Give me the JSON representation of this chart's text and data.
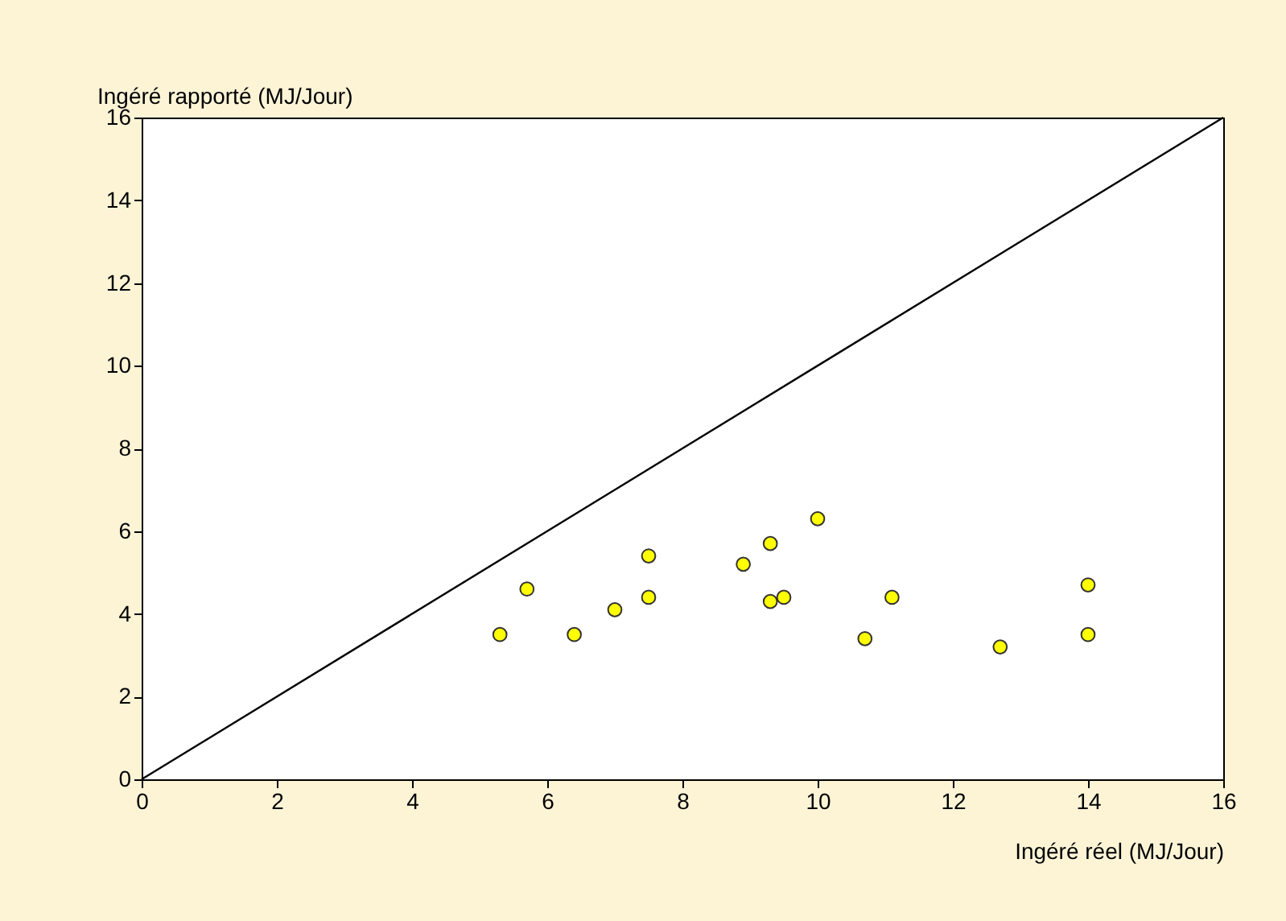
{
  "chart_data": {
    "type": "scatter",
    "xlabel": "Ingéré réel (MJ/Jour)",
    "ylabel": "Ingéré rapporté (MJ/Jour)",
    "xlim": [
      0,
      16
    ],
    "ylim": [
      0,
      16
    ],
    "xticks": [
      0,
      2,
      4,
      6,
      8,
      10,
      12,
      14,
      16
    ],
    "yticks": [
      0,
      2,
      4,
      6,
      8,
      10,
      12,
      14,
      16
    ],
    "grid": false,
    "series": [
      {
        "marker": "circle",
        "color": "#ffff00",
        "x": [
          5.3,
          5.7,
          6.4,
          7.0,
          7.5,
          7.5,
          8.9,
          9.3,
          9.3,
          9.5,
          10.0,
          10.7,
          11.1,
          12.7,
          14.0,
          14.0
        ],
        "values": [
          3.5,
          4.6,
          3.5,
          4.1,
          5.4,
          4.4,
          5.2,
          5.7,
          4.3,
          4.4,
          6.3,
          3.4,
          4.4,
          3.2,
          4.7,
          3.5
        ]
      },
      {
        "type": "line",
        "color": "#000000",
        "x": [
          0,
          16
        ],
        "values": [
          0,
          16
        ]
      }
    ]
  }
}
